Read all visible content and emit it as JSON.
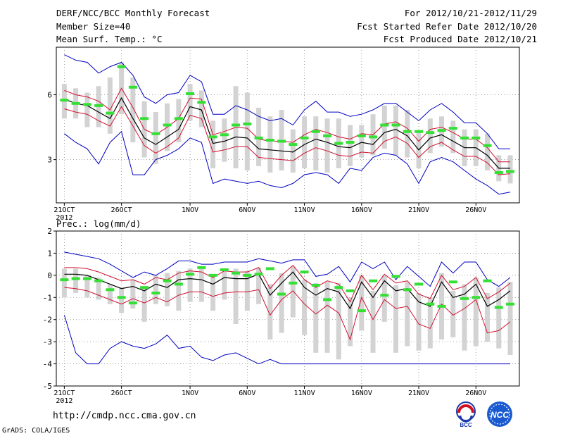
{
  "header": {
    "title": "DERF/NCC/BCC Monthly Forecast",
    "member_size": "Member Size=40",
    "variable": "Mean Surf. Temp.: °C",
    "forecast_period": "For 2012/10/21-2012/11/29",
    "start_date": "Fcst Started Refer Date 2012/10/20",
    "produced_date": "Fcst Produced Date 2012/10/21"
  },
  "footer": {
    "url": "http://cmdp.ncc.cma.gov.cn",
    "credit": "GrADS: COLA/IGES",
    "logo_bcc": "BCC",
    "logo_ncc": "NCC"
  },
  "colors": {
    "box": "#d3d3d3",
    "mean": "#000000",
    "sd": "#d01030",
    "extreme": "#0000c0",
    "obs": "#33e033"
  },
  "chart_data": [
    {
      "type": "box",
      "title": "Mean Surf. Temp.: °C",
      "ylim": [
        1,
        8.2
      ],
      "yticks": [
        3,
        6
      ],
      "xlim": [
        0.3,
        40.8
      ],
      "xticks": [
        {
          "day": 1,
          "label": "21OCT",
          "sub": "2012"
        },
        {
          "day": 6,
          "label": "26OCT"
        },
        {
          "day": 12,
          "label": "1NOV"
        },
        {
          "day": 17,
          "label": "6NOV"
        },
        {
          "day": 22,
          "label": "11NOV"
        },
        {
          "day": 27,
          "label": "16NOV"
        },
        {
          "day": 32,
          "label": "21NOV"
        },
        {
          "day": 37,
          "label": "26NOV"
        }
      ],
      "days": [
        1,
        2,
        3,
        4,
        5,
        6,
        7,
        8,
        9,
        10,
        11,
        12,
        13,
        14,
        15,
        16,
        17,
        18,
        19,
        20,
        21,
        22,
        23,
        24,
        25,
        26,
        27,
        28,
        29,
        30,
        31,
        32,
        33,
        34,
        35,
        36,
        37,
        38,
        39,
        40
      ],
      "mean": [
        5.8,
        5.6,
        5.5,
        5.2,
        4.9,
        5.85,
        4.9,
        4.0,
        3.7,
        4.05,
        4.4,
        5.45,
        5.3,
        3.75,
        3.85,
        4.05,
        4.0,
        3.5,
        3.45,
        3.4,
        3.35,
        3.7,
        3.95,
        3.8,
        3.6,
        3.55,
        3.8,
        3.7,
        4.25,
        4.4,
        4.1,
        3.45,
        4.0,
        4.15,
        3.85,
        3.55,
        3.55,
        3.2,
        2.6,
        2.6
      ],
      "sd_upper": [
        6.2,
        6.0,
        5.9,
        5.7,
        5.3,
        6.3,
        5.4,
        4.4,
        4.15,
        4.5,
        4.9,
        5.85,
        5.8,
        4.15,
        4.3,
        4.5,
        4.45,
        3.95,
        3.85,
        3.85,
        3.8,
        4.15,
        4.4,
        4.25,
        4.05,
        3.95,
        4.2,
        4.15,
        4.65,
        4.75,
        4.45,
        3.85,
        4.4,
        4.5,
        4.25,
        3.95,
        3.95,
        3.55,
        2.9,
        2.9
      ],
      "sd_lower": [
        5.35,
        5.2,
        5.1,
        4.8,
        4.55,
        5.45,
        4.55,
        3.65,
        3.3,
        3.6,
        4.0,
        5.05,
        4.9,
        3.35,
        3.45,
        3.6,
        3.6,
        3.1,
        3.05,
        3.0,
        2.95,
        3.3,
        3.55,
        3.4,
        3.2,
        3.15,
        3.35,
        3.3,
        3.85,
        4.05,
        3.75,
        3.1,
        3.6,
        3.8,
        3.45,
        3.15,
        3.15,
        2.85,
        2.3,
        2.35
      ],
      "max": [
        7.85,
        7.6,
        7.5,
        7.0,
        7.3,
        7.5,
        6.9,
        5.9,
        5.6,
        6.0,
        6.1,
        6.9,
        6.6,
        5.1,
        5.1,
        5.5,
        5.3,
        5.0,
        4.8,
        4.9,
        4.6,
        5.3,
        5.7,
        5.2,
        5.2,
        5.0,
        5.1,
        5.3,
        5.6,
        5.6,
        5.2,
        4.8,
        5.3,
        5.6,
        5.2,
        4.7,
        4.7,
        4.2,
        3.5,
        3.5
      ],
      "min": [
        4.2,
        3.8,
        3.5,
        2.8,
        3.8,
        4.3,
        2.3,
        2.3,
        3.0,
        3.2,
        3.5,
        4.0,
        3.8,
        1.9,
        2.1,
        2.0,
        1.9,
        2.0,
        1.8,
        1.7,
        1.9,
        2.3,
        2.4,
        2.3,
        1.9,
        2.6,
        2.5,
        3.1,
        3.3,
        3.2,
        2.8,
        1.9,
        2.9,
        3.1,
        2.9,
        2.5,
        2.1,
        1.8,
        1.4,
        1.5
      ],
      "box_high": [
        6.5,
        6.3,
        6.1,
        6.4,
        6.8,
        7.5,
        6.8,
        5.7,
        5.2,
        5.6,
        5.8,
        6.5,
        6.2,
        4.8,
        4.9,
        6.4,
        6.1,
        5.4,
        5.0,
        5.3,
        4.4,
        5.0,
        5.0,
        4.9,
        4.9,
        4.6,
        4.6,
        5.1,
        5.5,
        5.5,
        5.3,
        4.3,
        4.9,
        5.0,
        4.8,
        4.4,
        4.4,
        4.2,
        3.2,
        3.2
      ],
      "box_low": [
        4.9,
        4.9,
        4.5,
        4.5,
        4.2,
        5.1,
        3.8,
        3.1,
        2.8,
        3.4,
        3.8,
        4.8,
        4.5,
        2.6,
        2.9,
        2.6,
        2.5,
        2.7,
        2.4,
        2.5,
        2.4,
        2.6,
        2.5,
        2.4,
        2.6,
        2.7,
        3.1,
        3.2,
        3.5,
        3.2,
        3.1,
        2.6,
        3.3,
        3.6,
        3.3,
        2.7,
        2.7,
        2.5,
        2.0,
        1.9
      ],
      "observed": [
        5.75,
        5.6,
        5.55,
        5.5,
        5.15,
        7.3,
        6.35,
        4.9,
        4.2,
        4.6,
        4.9,
        6.05,
        5.65,
        4.05,
        4.15,
        4.6,
        4.65,
        4.0,
        3.9,
        3.85,
        3.7,
        4.0,
        4.3,
        4.1,
        3.75,
        3.8,
        4.1,
        4.05,
        4.6,
        4.6,
        4.3,
        4.3,
        4.25,
        4.35,
        4.45,
        4.0,
        4.0,
        3.65,
        2.4,
        2.45
      ]
    },
    {
      "type": "box",
      "title": "Prec.: log(mm/d)",
      "ylim": [
        -5,
        2
      ],
      "yticks": [
        -5,
        -4,
        -3,
        -2,
        -1,
        0,
        1,
        2
      ],
      "xlim": [
        0.3,
        40.8
      ],
      "xticks": [
        {
          "day": 1,
          "label": "21OCT",
          "sub": "2012"
        },
        {
          "day": 6,
          "label": "26OCT"
        },
        {
          "day": 12,
          "label": "1NOV"
        },
        {
          "day": 17,
          "label": "6NOV"
        },
        {
          "day": 22,
          "label": "11NOV"
        },
        {
          "day": 27,
          "label": "16NOV"
        },
        {
          "day": 32,
          "label": "21NOV"
        },
        {
          "day": 37,
          "label": "26NOV"
        }
      ],
      "days": [
        1,
        2,
        3,
        4,
        5,
        6,
        7,
        8,
        9,
        10,
        11,
        12,
        13,
        14,
        15,
        16,
        17,
        18,
        19,
        20,
        21,
        22,
        23,
        24,
        25,
        26,
        27,
        28,
        29,
        30,
        31,
        32,
        33,
        34,
        35,
        36,
        37,
        38,
        39,
        40
      ],
      "mean": [
        0.05,
        0.05,
        0.0,
        -0.2,
        -0.4,
        -0.6,
        -0.5,
        -0.7,
        -0.4,
        -0.55,
        -0.2,
        -0.15,
        -0.2,
        -0.4,
        -0.1,
        -0.15,
        -0.15,
        0.05,
        -0.9,
        -0.35,
        0.15,
        -0.55,
        -0.9,
        -0.6,
        -0.75,
        -1.5,
        -0.3,
        -1.0,
        -0.25,
        -0.7,
        -0.6,
        -1.2,
        -1.4,
        -0.3,
        -1.0,
        -0.85,
        -0.4,
        -1.4,
        -1.1,
        -0.7
      ],
      "sd_upper": [
        0.35,
        0.35,
        0.3,
        0.15,
        -0.05,
        -0.25,
        -0.2,
        -0.4,
        -0.1,
        -0.2,
        0.1,
        0.2,
        0.15,
        -0.1,
        0.2,
        0.15,
        0.15,
        0.35,
        -0.6,
        0.0,
        0.45,
        -0.2,
        -0.55,
        -0.25,
        -0.4,
        -1.2,
        0.0,
        -0.65,
        0.05,
        -0.35,
        -0.25,
        -0.85,
        -1.05,
        0.0,
        -0.65,
        -0.5,
        -0.1,
        -1.05,
        -0.75,
        -0.35
      ],
      "sd_lower": [
        -0.55,
        -0.6,
        -0.7,
        -0.9,
        -1.1,
        -1.3,
        -1.05,
        -1.25,
        -1.0,
        -1.2,
        -0.9,
        -0.75,
        -0.75,
        -0.95,
        -0.8,
        -0.75,
        -0.75,
        -0.65,
        -1.8,
        -1.1,
        -0.7,
        -1.3,
        -1.75,
        -1.35,
        -1.7,
        -2.9,
        -1.0,
        -2.0,
        -1.1,
        -1.5,
        -1.4,
        -2.2,
        -2.4,
        -1.3,
        -1.8,
        -1.5,
        -1.1,
        -2.6,
        -2.5,
        -2.1
      ],
      "max": [
        1.05,
        0.95,
        0.85,
        0.75,
        0.5,
        0.2,
        -0.1,
        0.15,
        0.0,
        0.3,
        0.65,
        0.65,
        0.5,
        0.5,
        0.6,
        0.6,
        0.6,
        0.75,
        0.65,
        0.55,
        0.7,
        0.7,
        -0.05,
        0.05,
        0.4,
        -0.3,
        0.6,
        0.3,
        0.6,
        -0.2,
        0.4,
        -0.05,
        -0.5,
        0.6,
        0.1,
        0.6,
        0.6,
        -0.2,
        -0.5,
        -0.1
      ],
      "min": [
        -1.8,
        -3.5,
        -4.0,
        -4.0,
        -3.3,
        -3.0,
        -3.2,
        -3.3,
        -3.1,
        -2.7,
        -3.3,
        -3.2,
        -3.7,
        -3.85,
        -3.6,
        -3.5,
        -3.75,
        -4.0,
        -3.8,
        -4.0,
        -4.0,
        -4.0,
        -4.0,
        -4.0,
        -4.0,
        -4.0,
        -4.0,
        -4.0,
        -4.0,
        -4.0,
        -4.0,
        -4.0,
        -4.0,
        -4.0,
        -4.0,
        -4.0,
        -4.0,
        -4.0,
        -4.0,
        -4.0
      ],
      "box_high": [
        0.3,
        0.3,
        0.0,
        -0.1,
        -0.4,
        -0.55,
        -0.2,
        -0.5,
        0.0,
        0.1,
        0.2,
        0.3,
        0.3,
        0.0,
        0.3,
        0.3,
        0.2,
        0.35,
        -0.4,
        0.1,
        0.4,
        -0.2,
        -0.35,
        -0.3,
        -0.35,
        -1.0,
        0.0,
        -0.7,
        0.0,
        -0.45,
        -0.3,
        -0.8,
        -1.0,
        0.1,
        -0.7,
        -0.4,
        -0.1,
        -0.8,
        -0.55,
        -0.3
      ],
      "box_low": [
        -1.0,
        -0.8,
        -1.0,
        -1.1,
        -1.3,
        -1.7,
        -1.5,
        -2.1,
        -1.3,
        -1.4,
        -1.6,
        -1.2,
        -1.2,
        -1.6,
        -1.1,
        -2.2,
        -1.6,
        -1.3,
        -2.9,
        -2.6,
        -1.9,
        -2.7,
        -3.5,
        -3.5,
        -3.8,
        -3.2,
        -2.5,
        -3.5,
        -2.1,
        -3.5,
        -3.2,
        -3.4,
        -3.3,
        -2.9,
        -2.8,
        -3.4,
        -3.2,
        -3.0,
        -3.3,
        -3.6
      ],
      "observed": [
        -0.2,
        -0.15,
        -0.15,
        -0.25,
        -0.65,
        -1.0,
        -1.25,
        -0.55,
        -0.8,
        -0.25,
        -0.4,
        0.05,
        0.35,
        0.0,
        0.25,
        0.1,
        0.0,
        0.05,
        0.3,
        -0.85,
        -0.35,
        0.15,
        -0.45,
        -1.1,
        -0.55,
        -0.7,
        -1.6,
        -0.25,
        -0.9,
        -0.05,
        -0.65,
        -0.4,
        -1.3,
        -1.4,
        -0.3,
        -1.05,
        -1.0,
        -0.25,
        -1.45,
        -1.3
      ]
    }
  ]
}
